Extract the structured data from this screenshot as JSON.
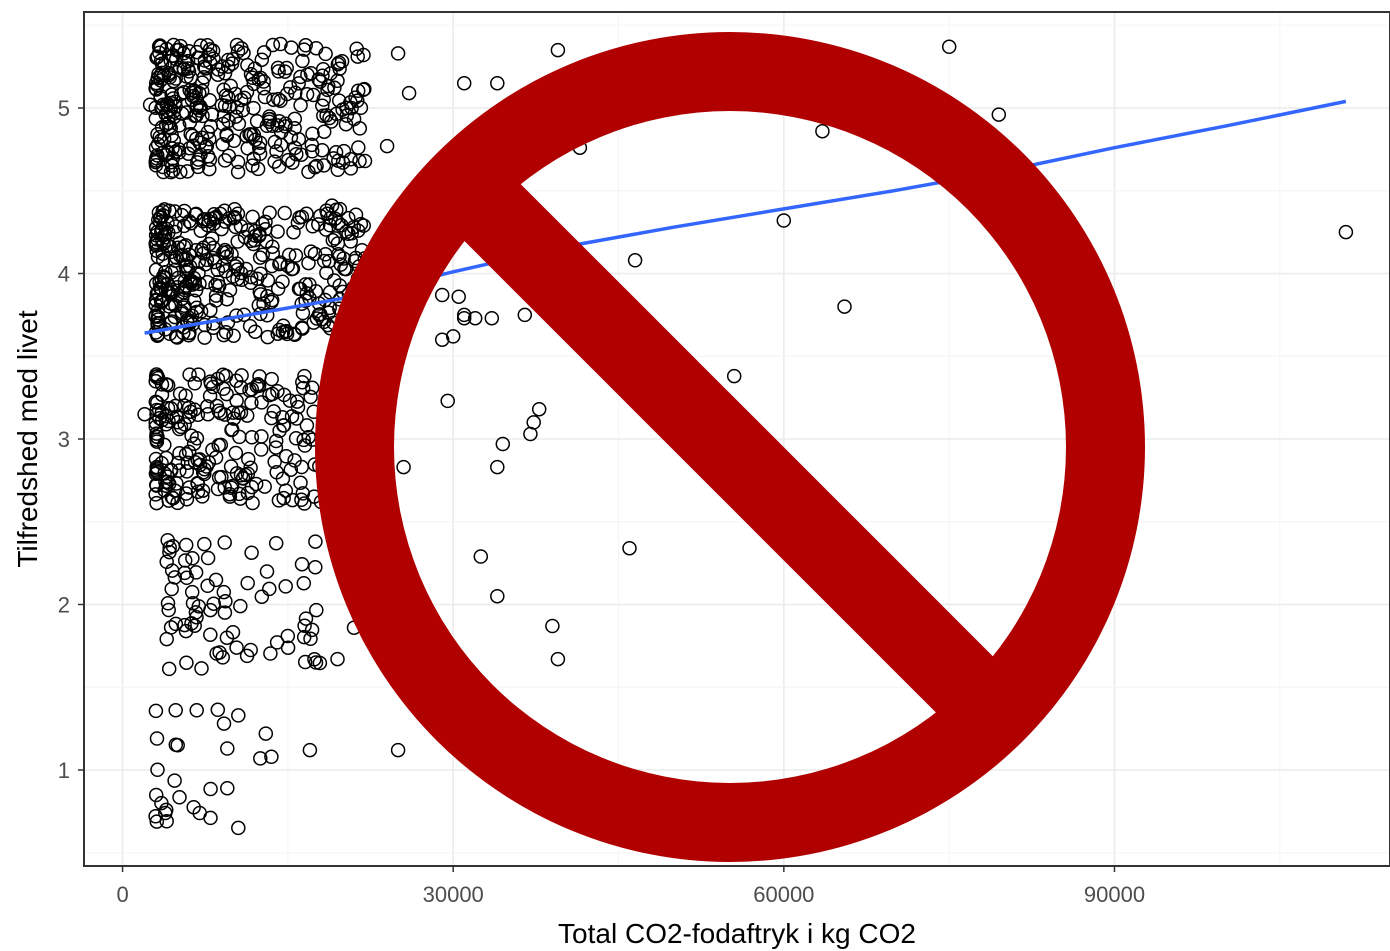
{
  "chart_data": {
    "type": "scatter",
    "title": "",
    "xlabel": "Total CO2-fodaftryk i kg CO2",
    "ylabel": "Tilfredshed med livet",
    "xlim": [
      -3500,
      115000
    ],
    "ylim": [
      0.42,
      5.58
    ],
    "x_ticks": [
      0,
      30000,
      60000,
      90000
    ],
    "y_ticks": [
      1,
      2,
      3,
      4,
      5
    ],
    "grid": true,
    "legend": "none",
    "jitter": "points are vertically jittered around integer ratings 1-5",
    "dense_clusters": [
      {
        "level": 5,
        "x_range": [
          3000,
          22000
        ],
        "count": 330
      },
      {
        "level": 4,
        "x_range": [
          3000,
          22000
        ],
        "count": 360
      },
      {
        "level": 3,
        "x_range": [
          3000,
          20000
        ],
        "count": 230
      },
      {
        "level": 2,
        "x_range": [
          4000,
          18000
        ],
        "count": 75
      },
      {
        "level": 1,
        "x_range": [
          3000,
          12000
        ],
        "count": 18
      }
    ],
    "points": [
      [
        2500,
        5.02
      ],
      [
        20000,
        4.67
      ],
      [
        22000,
        4.68
      ],
      [
        24000,
        4.77
      ],
      [
        25000,
        5.33
      ],
      [
        26000,
        5.09
      ],
      [
        31000,
        5.15
      ],
      [
        34000,
        5.15
      ],
      [
        39500,
        5.35
      ],
      [
        41500,
        4.76
      ],
      [
        63500,
        4.86
      ],
      [
        75000,
        5.37
      ],
      [
        79500,
        4.96
      ],
      [
        60000,
        4.32
      ],
      [
        46500,
        4.08
      ],
      [
        36500,
        3.75
      ],
      [
        65500,
        3.8
      ],
      [
        111000,
        4.25
      ],
      [
        29000,
        3.6
      ],
      [
        30000,
        3.62
      ],
      [
        31000,
        3.73
      ],
      [
        32000,
        3.73
      ],
      [
        33500,
        3.73
      ],
      [
        29000,
        3.87
      ],
      [
        30500,
        3.86
      ],
      [
        31000,
        3.75
      ],
      [
        33000,
        4.22
      ],
      [
        34500,
        4.09
      ],
      [
        55500,
        3.38
      ],
      [
        29500,
        3.23
      ],
      [
        34500,
        2.97
      ],
      [
        34000,
        2.83
      ],
      [
        37000,
        3.03
      ],
      [
        37300,
        3.1
      ],
      [
        37800,
        3.18
      ],
      [
        25500,
        2.83
      ],
      [
        16500,
        3.38
      ],
      [
        2000,
        3.15
      ],
      [
        46000,
        2.34
      ],
      [
        32500,
        2.29
      ],
      [
        34000,
        2.05
      ],
      [
        39000,
        1.87
      ],
      [
        39500,
        1.67
      ],
      [
        17500,
        2.38
      ],
      [
        19500,
        1.67
      ],
      [
        21000,
        1.86
      ],
      [
        17000,
        1.12
      ],
      [
        25000,
        1.12
      ],
      [
        10500,
        0.65
      ],
      [
        7000,
        0.74
      ],
      [
        3000,
        0.72
      ],
      [
        4000,
        0.69
      ],
      [
        10500,
        1.33
      ],
      [
        12500,
        1.07
      ],
      [
        13500,
        1.08
      ],
      [
        13000,
        1.22
      ],
      [
        9500,
        1.13
      ],
      [
        9500,
        0.89
      ],
      [
        5000,
        1.15
      ],
      [
        18000,
        2.62
      ],
      [
        16500,
        2.61
      ],
      [
        22500,
        4.03
      ],
      [
        20500,
        4.24
      ],
      [
        18500,
        4.38
      ],
      [
        19000,
        4.41
      ],
      [
        21500,
        4.68
      ]
    ],
    "trend_line": {
      "color": "#3366ff",
      "x": [
        2000,
        20000,
        30000,
        40000,
        50000,
        60000,
        70000,
        80000,
        90000,
        100000,
        111000
      ],
      "y": [
        3.64,
        3.85,
        4.01,
        4.16,
        4.28,
        4.39,
        4.5,
        4.62,
        4.76,
        4.89,
        5.04
      ]
    }
  },
  "overlay": {
    "symbol": "prohibition-sign",
    "color": "#b00000"
  },
  "colors": {
    "panel_border": "#333333",
    "grid_major": "#ebebeb",
    "grid_minor": "#f5f5f5",
    "point_stroke": "#000000",
    "tick_text": "#4d4d4d"
  }
}
